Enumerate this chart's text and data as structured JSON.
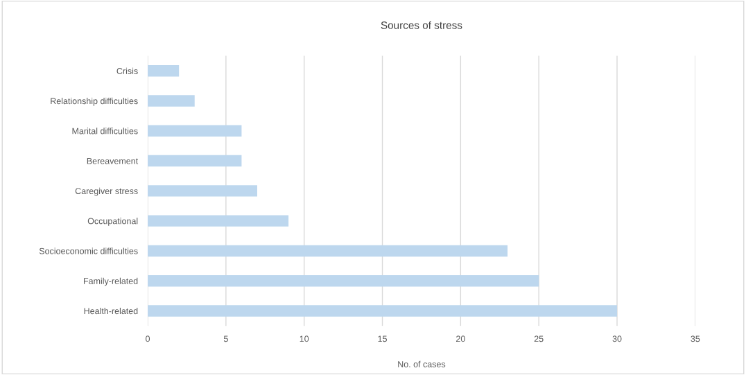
{
  "chart_data": {
    "type": "bar",
    "orientation": "horizontal",
    "title": "Sources of stress",
    "xlabel": "No. of cases",
    "categories": [
      "Crisis",
      "Relationship difficulties",
      "Marital difficulties",
      "Bereavement",
      "Caregiver stress",
      "Occupational",
      "Socioeconomic difficulties",
      "Family-related",
      "Health-related"
    ],
    "values": [
      2,
      3,
      6,
      6,
      7,
      9,
      23,
      25,
      30
    ],
    "color": "#bdd7ee",
    "xlim": [
      0,
      35
    ],
    "xticks": [
      0,
      5,
      10,
      15,
      20,
      25,
      30,
      35
    ],
    "grid": "x",
    "legend": false
  }
}
